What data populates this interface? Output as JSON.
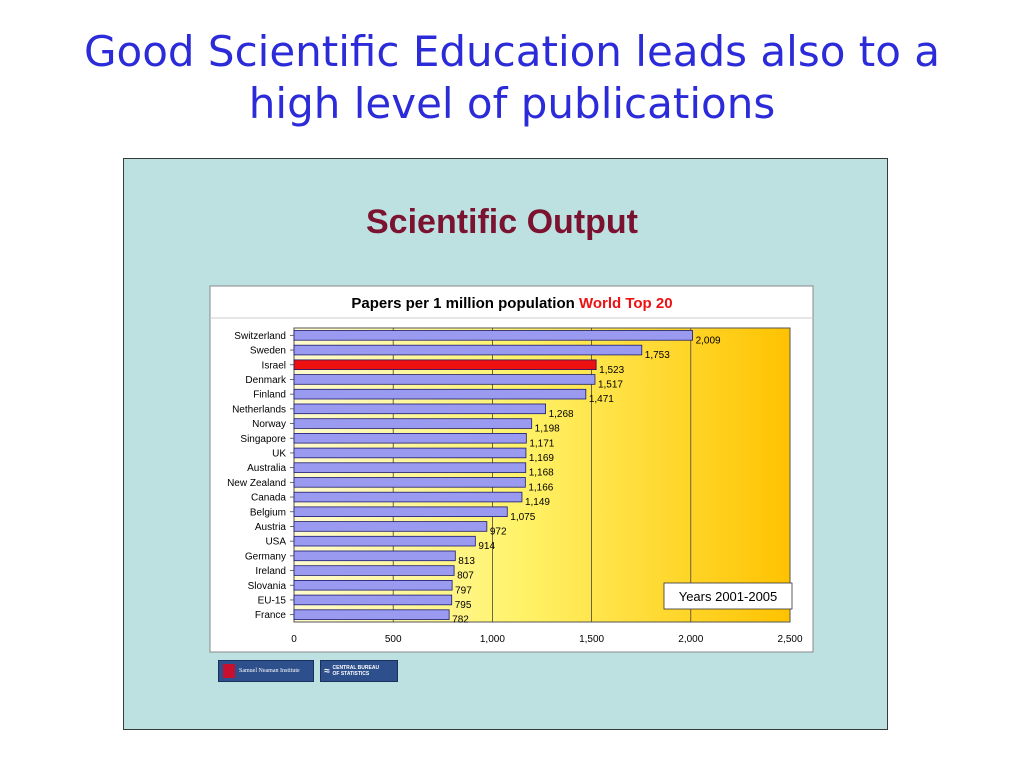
{
  "slide": {
    "title_line1": "Good Scientific Education leads also to a",
    "title_line2": "high level of publications"
  },
  "chart_data": {
    "type": "bar",
    "orientation": "horizontal",
    "heading": "Scientific Output",
    "title_main": "Papers per 1 million population",
    "title_highlight": "World Top 20",
    "annotation": "Years 2001-2005",
    "categories": [
      "Switzerland",
      "Sweden",
      "Israel",
      "Denmark",
      "Finland",
      "Netherlands",
      "Norway",
      "Singapore",
      "UK",
      "Australia",
      "New Zealand",
      "Canada",
      "Belgium",
      "Austria",
      "USA",
      "Germany",
      "Ireland",
      "Slovania",
      "EU-15",
      "France"
    ],
    "values": [
      2009,
      1753,
      1523,
      1517,
      1471,
      1268,
      1198,
      1171,
      1169,
      1168,
      1166,
      1149,
      1075,
      972,
      914,
      813,
      807,
      797,
      795,
      782
    ],
    "value_labels": [
      "2,009",
      "1,753",
      "1,523",
      "1,517",
      "1,471",
      "1,268",
      "1,198",
      "1,171",
      "1,169",
      "1,168",
      "1,166",
      "1,149",
      "1,075",
      "972",
      "914",
      "813",
      "807",
      "797",
      "795",
      "782"
    ],
    "highlight_category": "Israel",
    "xlim": [
      0,
      2500
    ],
    "xticks": [
      0,
      500,
      1000,
      1500,
      2000,
      2500
    ],
    "xtick_labels": [
      "0",
      "500",
      "1,000",
      "1,500",
      "2,000",
      "2,500"
    ],
    "grid": true,
    "colors": {
      "bar": "#9a9af0",
      "bar_highlight": "#ee1111",
      "bar_border": "#1a1a6e",
      "plot_bg_left": "#fffbd0",
      "plot_bg_right": "#ffc200",
      "title_highlight": "#ee1111",
      "heading": "#7a1230"
    }
  },
  "logos": {
    "left_name": "samuel-neaman-institute-logo",
    "left_text": "Samuel Neaman Institute",
    "right_name": "central-bureau-of-statistics-logo",
    "right_text_line1": "CENTRAL BUREAU",
    "right_text_line2": "OF STATISTICS"
  }
}
